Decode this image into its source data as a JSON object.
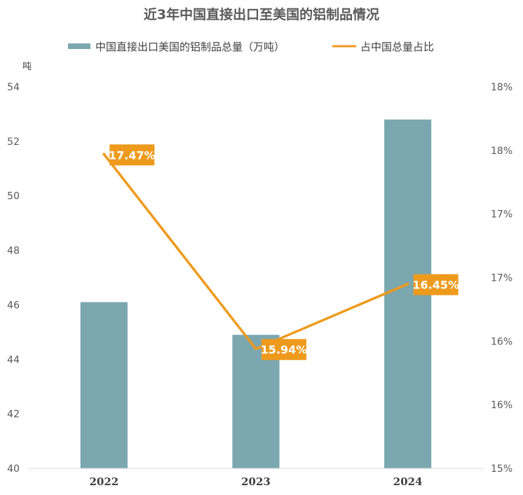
{
  "chart_data": {
    "type": "bar",
    "title": "近3年中国直接出口至美国的铝制品情况",
    "categories": [
      "2022",
      "2023",
      "2024"
    ],
    "y_unit": "吨",
    "ylim": [
      40,
      54
    ],
    "yticks": [
      "40",
      "42",
      "44",
      "46",
      "48",
      "50",
      "52",
      "54"
    ],
    "y2lim": [
      15,
      18
    ],
    "y2ticks": [
      "15%",
      "16%",
      "16%",
      "17%",
      "17%",
      "18%",
      "18%"
    ],
    "series": [
      {
        "name": "中国直接出口美国的铝制品总量（万吨）",
        "type": "bar",
        "axis": "left",
        "values": [
          46.1,
          44.9,
          52.8
        ],
        "color": "#7ba7b0"
      },
      {
        "name": "占中国总量占比",
        "type": "line",
        "axis": "right",
        "values": [
          17.47,
          15.94,
          16.45
        ],
        "labels": [
          "17.47%",
          "15.94%",
          "16.45%"
        ],
        "color": "#ee9a1c"
      }
    ],
    "legend": "top",
    "grid": false
  }
}
